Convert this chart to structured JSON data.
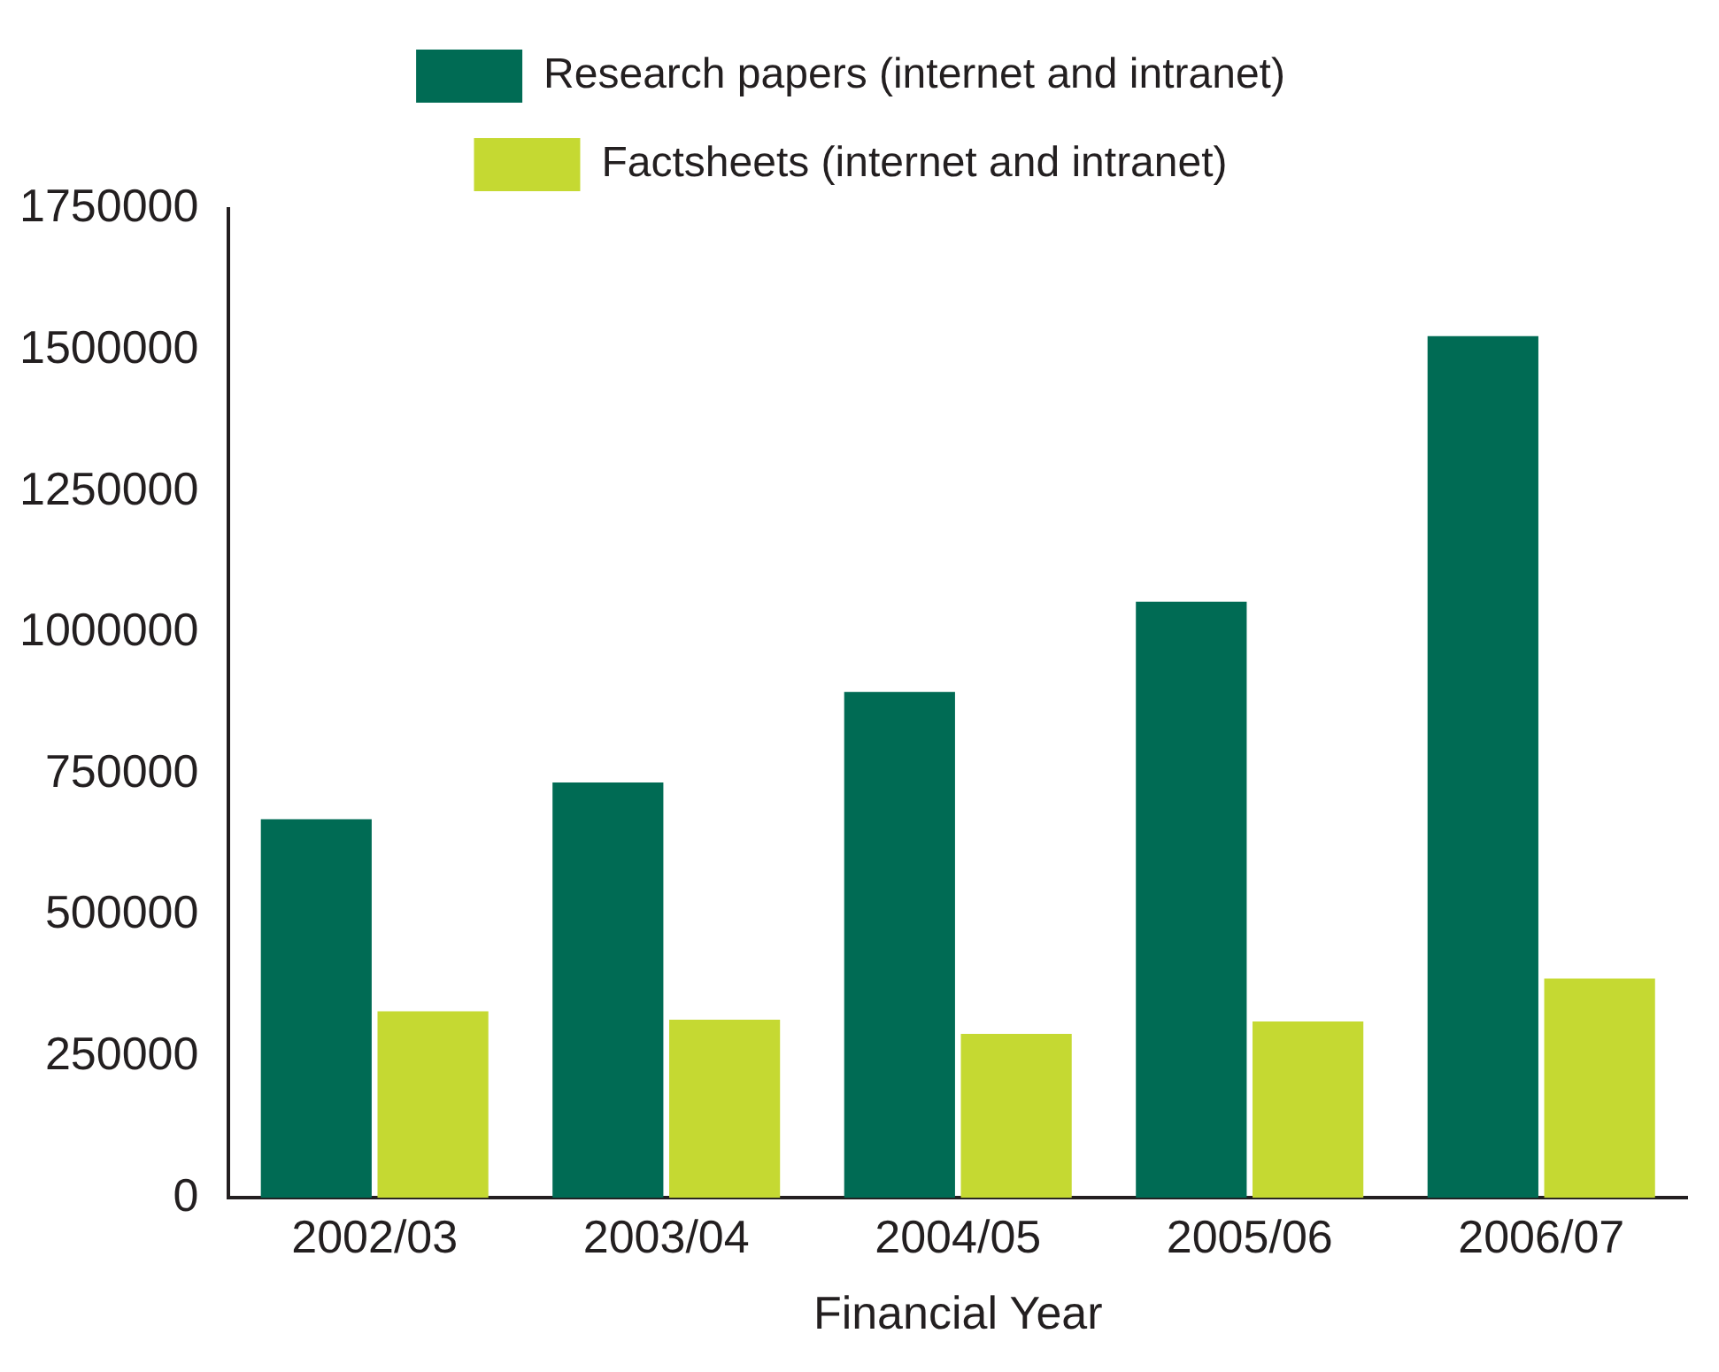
{
  "chart_data": {
    "type": "bar",
    "xlabel": "Financial Year",
    "categories": [
      "2002/03",
      "2003/04",
      "2004/05",
      "2005/06",
      "2006/07"
    ],
    "series": [
      {
        "name": "Research papers (internet and intranet)",
        "color": "#006b54",
        "values": [
          670000,
          735000,
          895000,
          1055000,
          1525000
        ]
      },
      {
        "name": "Factsheets (internet and intranet)",
        "color": "#c5d932",
        "values": [
          330000,
          315000,
          290000,
          312000,
          388000
        ]
      }
    ],
    "ylim": [
      0,
      1750000
    ],
    "yticks": [
      0,
      250000,
      500000,
      750000,
      1000000,
      1250000,
      1500000,
      1750000
    ],
    "grid": false,
    "legend": "top"
  }
}
